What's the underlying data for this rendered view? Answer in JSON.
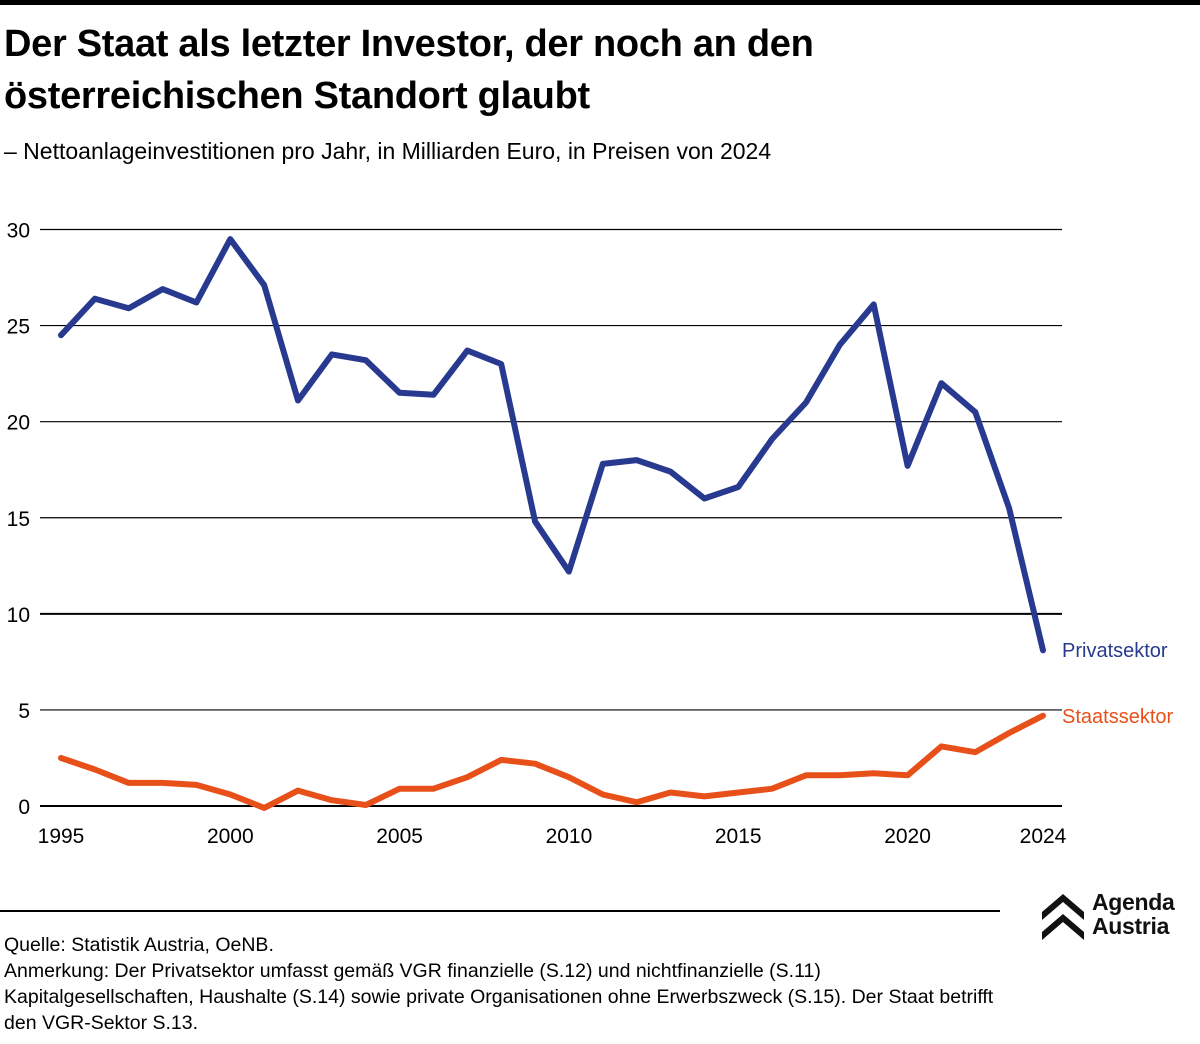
{
  "header": {
    "title": "Der Staat als letzter Investor, der noch an den österreichischen Standort glaubt",
    "subtitle": "– Nettoanlageinvestitionen pro Jahr, in Milliarden Euro, in Preisen von 2024"
  },
  "chart_data": {
    "type": "line",
    "title": "Der Staat als letzter Investor, der noch an den österreichischen Standort glaubt",
    "subtitle": "Nettoanlageinvestitionen pro Jahr, in Milliarden Euro, in Preisen von 2024",
    "xlabel": "",
    "ylabel": "",
    "x": [
      1995,
      1996,
      1997,
      1998,
      1999,
      2000,
      2001,
      2002,
      2003,
      2004,
      2005,
      2006,
      2007,
      2008,
      2009,
      2010,
      2011,
      2012,
      2013,
      2014,
      2015,
      2016,
      2017,
      2018,
      2019,
      2020,
      2021,
      2022,
      2023,
      2024
    ],
    "xlim": [
      1995,
      2024
    ],
    "ylim": [
      0,
      30
    ],
    "x_ticks": [
      1995,
      2000,
      2005,
      2010,
      2015,
      2020,
      2024
    ],
    "x_tick_labels": [
      "1995",
      "2000",
      "2005",
      "2010",
      "2015",
      "2020",
      "2024"
    ],
    "y_ticks": [
      0,
      5,
      10,
      15,
      20,
      25,
      30
    ],
    "y_tick_labels": [
      "0",
      "5",
      "10",
      "15",
      "20",
      "25",
      "30"
    ],
    "grid": true,
    "legend": "direct labels at line ends (right)",
    "series": [
      {
        "name": "Privatsektor",
        "color": "#283a8f",
        "values": [
          24.5,
          26.4,
          25.9,
          26.9,
          26.2,
          29.5,
          27.1,
          21.1,
          23.5,
          23.2,
          21.5,
          21.4,
          23.7,
          23.0,
          14.8,
          12.2,
          17.8,
          18.0,
          17.4,
          16.0,
          16.6,
          19.1,
          21.0,
          24.0,
          26.1,
          17.7,
          22.0,
          20.5,
          15.5,
          8.1
        ]
      },
      {
        "name": "Staatssektor",
        "color": "#e8501a",
        "values": [
          2.5,
          1.9,
          1.2,
          1.2,
          1.1,
          0.6,
          -0.1,
          0.8,
          0.3,
          0.05,
          0.9,
          0.9,
          1.5,
          2.4,
          2.2,
          1.5,
          0.6,
          0.2,
          0.7,
          0.5,
          0.7,
          0.9,
          1.6,
          1.6,
          1.7,
          1.6,
          3.1,
          2.8,
          3.8,
          4.7
        ]
      }
    ]
  },
  "footer": {
    "source": "Quelle: Statistik Austria, OeNB.",
    "note": "Anmerkung: Der Privatsektor umfasst gemäß VGR finanzielle (S.12) und nichtfinanzielle (S.11) Kapitalgesellschaften, Haushalte (S.14) sowie private Organisationen ohne Erwerbszweck (S.15). Der Staat betrifft den VGR-Sektor S.13."
  },
  "logo": {
    "line1": "Agenda",
    "line2": "Austria",
    "icon": "double-chevron-up-icon"
  }
}
